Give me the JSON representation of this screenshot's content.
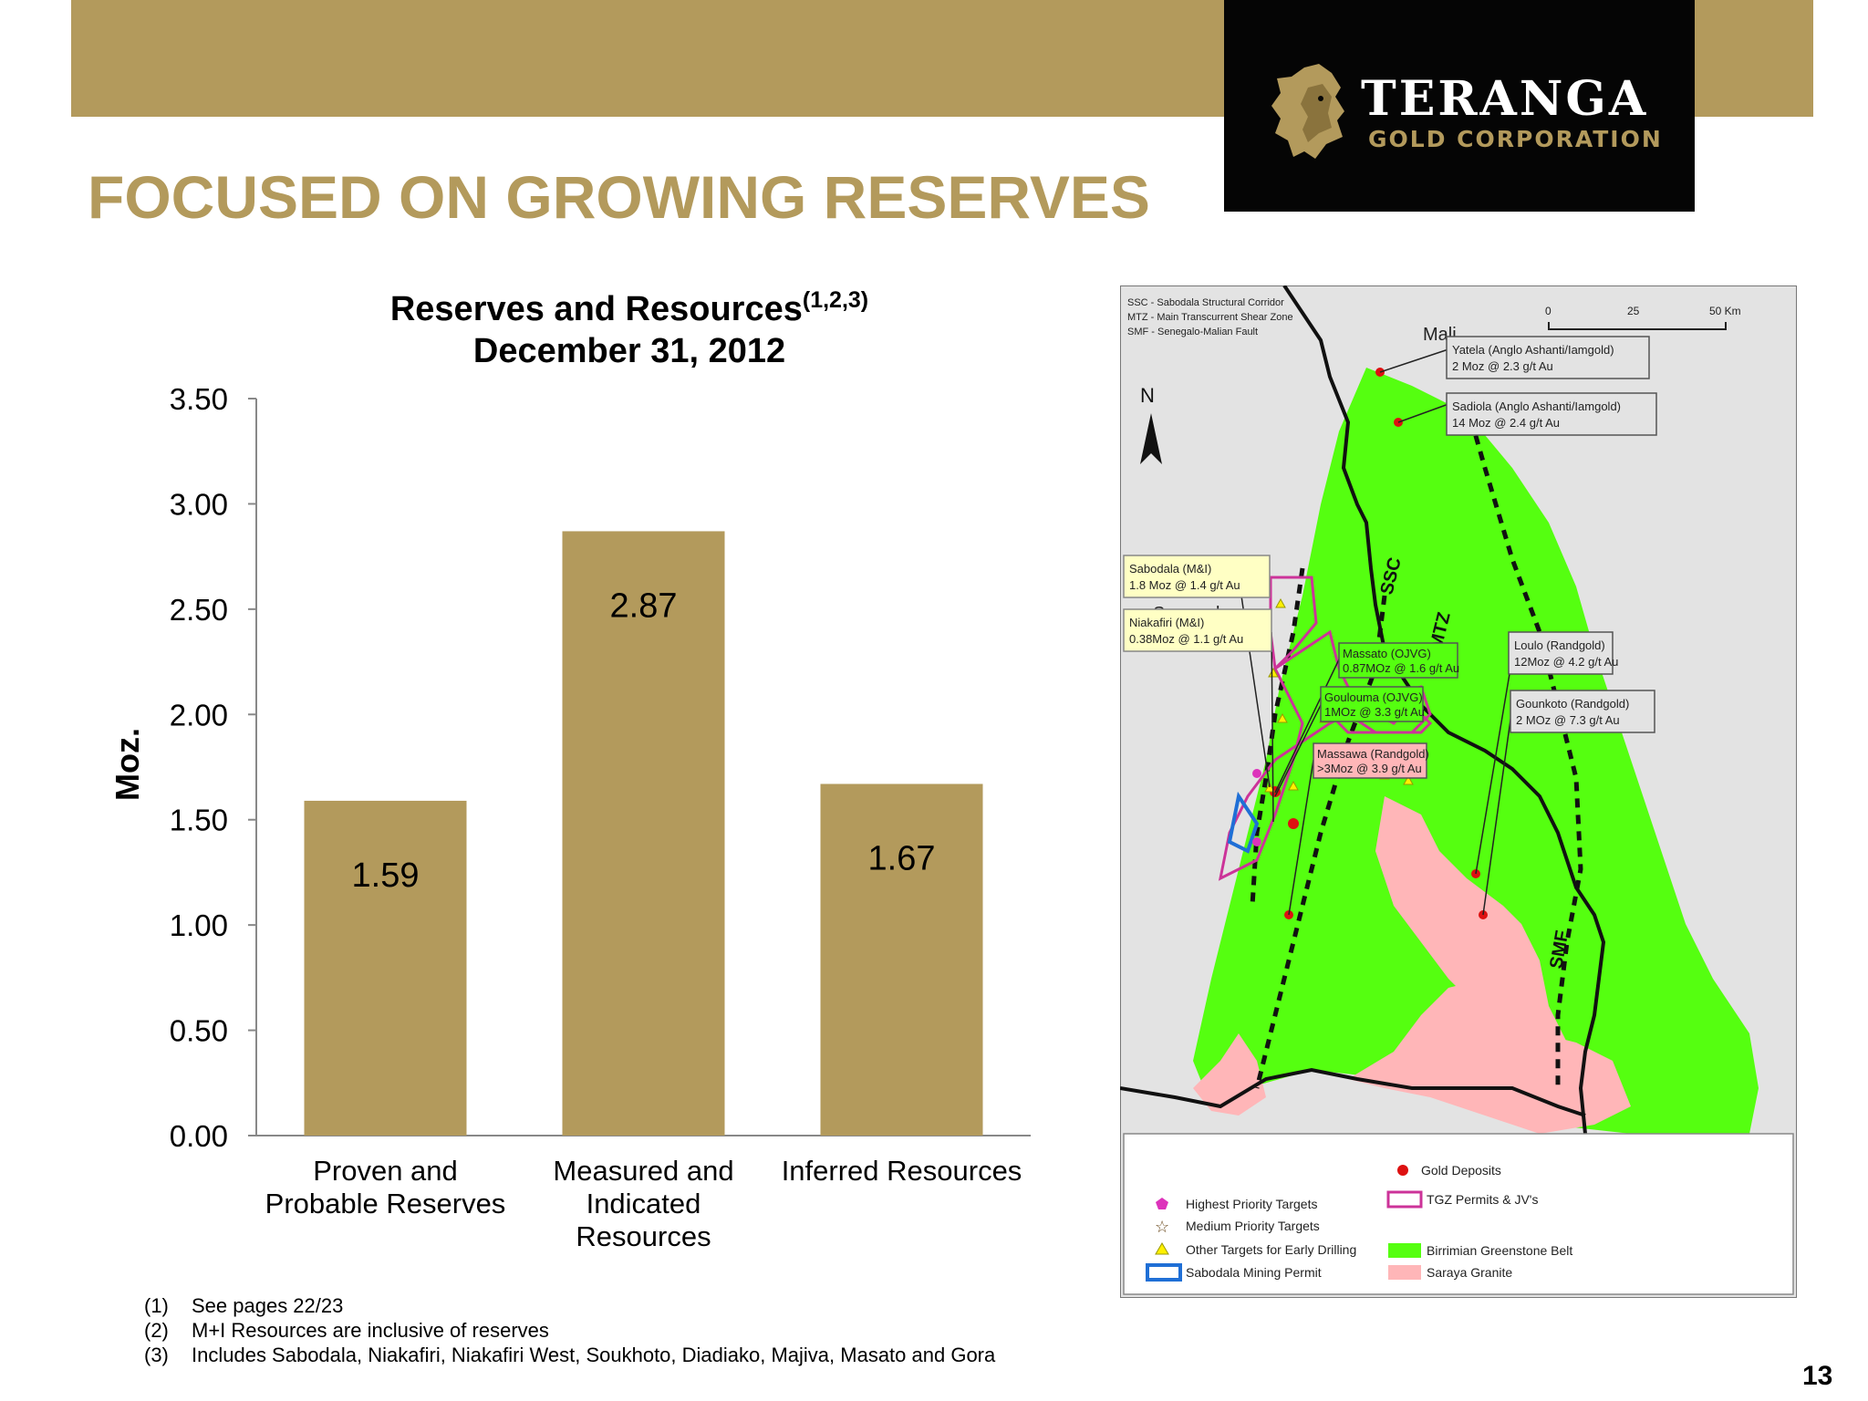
{
  "header": {
    "title": "FOCUSED ON GROWING RESERVES",
    "page_number": "13"
  },
  "logo": {
    "name": "TERANGA",
    "sub": "GOLD CORPORATION"
  },
  "chart_data": {
    "type": "bar",
    "title": "Reserves and Resources",
    "title_superscript": "(1,2,3)",
    "subtitle": "December 31, 2012",
    "ylabel": "Moz.",
    "xlabel": "",
    "ylim": [
      0,
      3.5
    ],
    "yticks": [
      "0.00",
      "0.50",
      "1.00",
      "1.50",
      "2.00",
      "2.50",
      "3.00",
      "3.50"
    ],
    "categories": [
      [
        "Proven and",
        "Probable Reserves"
      ],
      [
        "Measured and",
        "Indicated",
        "Resources"
      ],
      [
        "Inferred Resources"
      ]
    ],
    "values": [
      1.59,
      2.87,
      1.67
    ],
    "value_labels": [
      "1.59",
      "2.87",
      "1.67"
    ],
    "grid": false,
    "bar_color": "#b39a5c"
  },
  "footnotes": [
    {
      "num": "(1)",
      "text": "See pages 22/23"
    },
    {
      "num": "(2)",
      "text": "M+I Resources are inclusive of reserves"
    },
    {
      "num": "(3)",
      "text": "Includes Sabodala, Niakafiri, Niakafiri West, Soukhoto, Diadiako, Majiva, Masato and Gora"
    }
  ],
  "map": {
    "abbreviations": [
      "SSC - Sabodala Structural Corridor",
      "MTZ - Main Transcurrent Shear Zone",
      "SMF - Senegalo-Malian Fault"
    ],
    "scale": [
      "0",
      "25",
      "50 Km"
    ],
    "north": "N",
    "countries": [
      "Mali",
      "Senegal"
    ],
    "faults": [
      "SSC",
      "MTZ",
      "SMF"
    ],
    "callouts": [
      [
        "Yatela (Anglo Ashanti/Iamgold)",
        "2 Moz @ 2.3 g/t Au"
      ],
      [
        "Sadiola (Anglo Ashanti/Iamgold)",
        "14 Moz @ 2.4 g/t Au"
      ],
      [
        "Sabodala (M&I)",
        "1.8 Moz @ 1.4 g/t Au"
      ],
      [
        "Niakafiri (M&I)",
        "0.38Moz @ 1.1 g/t Au"
      ],
      [
        "Massato (OJVG)",
        "0.87MOz @ 1.6 g/t Au"
      ],
      [
        "Goulouma (OJVG)",
        "1MOz @ 3.3 g/t Au"
      ],
      [
        "Massawa (Randgold)",
        ">3Moz @ 3.9 g/t Au"
      ],
      [
        "Loulo (Randgold)",
        "12Moz @ 4.2 g/t Au"
      ],
      [
        "Gounkoto (Randgold)",
        "2 MOz @ 7.3 g/t Au"
      ]
    ],
    "legend": [
      "Highest Priority Targets",
      "Medium Priority Targets",
      "Other Targets for Early Drilling",
      "Sabodala Mining Permit",
      "Gold Deposits",
      "TGZ  Permits & JV's",
      "Birrimian Greenstone Belt",
      "Saraya Granite"
    ],
    "colors": {
      "greenstone": "#55ff10",
      "granite": "#ffb6b8",
      "permit": "#cc3399",
      "deposit": "#dd1111",
      "mining_permit": "#1f6fd6",
      "callout_yellow": "#ffffc4"
    }
  }
}
